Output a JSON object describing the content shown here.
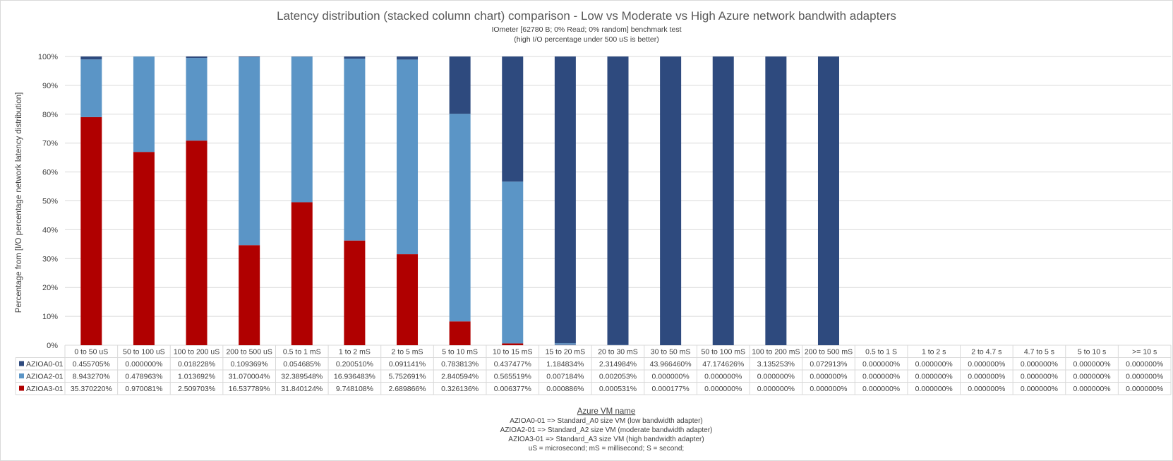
{
  "chart_data": {
    "type": "bar",
    "stacked": true,
    "percent_stacked": true,
    "title": "Latency distribution (stacked column chart) comparison - Low vs Moderate vs High Azure network  bandwith adapters",
    "subtitle_lines": [
      "IOmeter [62780 B; 0% Read; 0% random] benchmark test",
      "(high I/O percentage under 500 uS is better)"
    ],
    "ylabel": "Percentage from [I/O percentage network  latency distribution]",
    "ylim": [
      0,
      100
    ],
    "yticks": [
      "0%",
      "10%",
      "20%",
      "30%",
      "40%",
      "50%",
      "60%",
      "70%",
      "80%",
      "90%",
      "100%"
    ],
    "grid": true,
    "categories": [
      "0 to 50 uS",
      "50 to 100 uS",
      "100 to 200 uS",
      "200 to 500 uS",
      "0.5 to 1 mS",
      "1 to 2 mS",
      "2 to 5 mS",
      "5 to 10 mS",
      "10 to 15 mS",
      "15 to 20 mS",
      "20 to 30 mS",
      "30 to 50 mS",
      "50 to 100 mS",
      "100 to 200 mS",
      "200 to 500 mS",
      "0.5 to 1 S",
      "1 to 2 s",
      "2 to 4.7 s",
      "4.7 to 5 s",
      "5 to 10 s",
      ">= 10 s"
    ],
    "series": [
      {
        "name": "AZIOA0-01",
        "color": "#2e4a7e",
        "values": [
          0.455705,
          0.0,
          0.018228,
          0.109369,
          0.054685,
          0.20051,
          0.091141,
          0.783813,
          0.437477,
          1.184834,
          2.314984,
          43.96646,
          47.174626,
          3.135253,
          0.072913,
          0,
          0,
          0,
          0,
          0,
          0
        ],
        "labels": [
          "0.455705%",
          "0.000000%",
          "0.018228%",
          "0.109369%",
          "0.054685%",
          "0.200510%",
          "0.091141%",
          "0.783813%",
          "0.437477%",
          "1.184834%",
          "2.314984%",
          "43.966460%",
          "47.174626%",
          "3.135253%",
          "0.072913%",
          "0.000000%",
          "0.000000%",
          "0.000000%",
          "0.000000%",
          "0.000000%",
          "0.000000%"
        ]
      },
      {
        "name": "AZIOA2-01",
        "color": "#5b95c6",
        "values": [
          8.94327,
          0.478963,
          1.013692,
          31.070004,
          32.389548,
          16.936483,
          5.752691,
          2.840594,
          0.565519,
          0.007184,
          0.002053,
          0.0,
          0.0,
          0.0,
          0.0,
          0,
          0,
          0,
          0,
          0,
          0
        ],
        "labels": [
          "8.943270%",
          "0.478963%",
          "1.013692%",
          "31.070004%",
          "32.389548%",
          "16.936483%",
          "5.752691%",
          "2.840594%",
          "0.565519%",
          "0.007184%",
          "0.002053%",
          "0.000000%",
          "0.000000%",
          "0.000000%",
          "0.000000%",
          "0.000000%",
          "0.000000%",
          "0.000000%",
          "0.000000%",
          "0.000000%",
          "0.000000%"
        ]
      },
      {
        "name": "AZIOA3-01",
        "color": "#b00000",
        "values": [
          35.37022,
          0.970081,
          2.509703,
          16.537789,
          31.840124,
          9.748108,
          2.689866,
          0.326136,
          0.006377,
          0.000886,
          0.000531,
          0.000177,
          0.0,
          0.0,
          0.0,
          0,
          0,
          0,
          0,
          0,
          0
        ],
        "labels": [
          "35.370220%",
          "0.970081%",
          "2.509703%",
          "16.537789%",
          "31.840124%",
          "9.748108%",
          "2.689866%",
          "0.326136%",
          "0.006377%",
          "0.000886%",
          "0.000531%",
          "0.000177%",
          "0.000000%",
          "0.000000%",
          "0.000000%",
          "0.000000%",
          "0.000000%",
          "0.000000%",
          "0.000000%",
          "0.000000%",
          "0.000000%"
        ]
      }
    ],
    "legend_placement": "data-table",
    "footer_title": "Azure VM name",
    "footer_lines": [
      "AZIOA0-01 => Standard_A0 size VM (low bandwidth adapter)",
      "AZIOA2-01 => Standard_A2 size VM (moderate bandwidth adapter)",
      "AZIOA3-01 => Standard_A3 size VM (high bandwidth adapter)",
      "uS = microsecond; mS = millisecond; S = second;"
    ]
  }
}
